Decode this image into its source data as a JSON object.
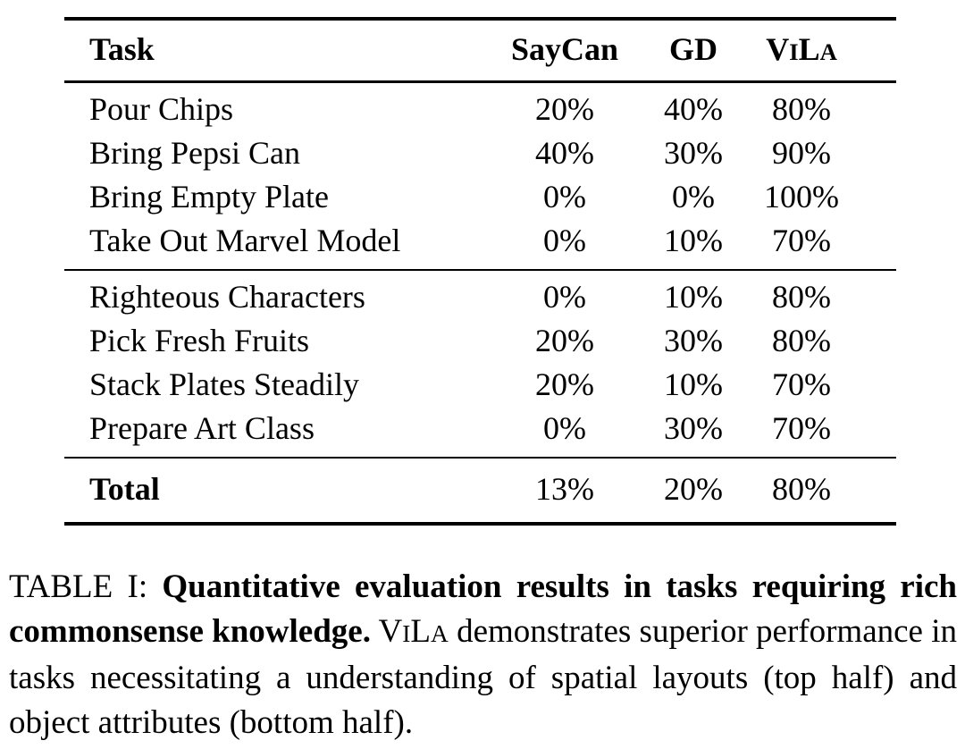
{
  "vila": {
    "c1": "V",
    "c2": "I",
    "c3": "L",
    "c4": "A"
  },
  "table": {
    "columns": {
      "task": "Task",
      "saycan": "SayCan",
      "gd": "GD"
    },
    "groups": [
      {
        "rows": [
          {
            "task": "Pour Chips",
            "saycan": "20%",
            "gd": "40%",
            "vila": "80%"
          },
          {
            "task": "Bring Pepsi Can",
            "saycan": "40%",
            "gd": "30%",
            "vila": "90%"
          },
          {
            "task": "Bring Empty Plate",
            "saycan": "0%",
            "gd": "0%",
            "vila": "100%"
          },
          {
            "task": "Take Out Marvel Model",
            "saycan": "0%",
            "gd": "10%",
            "vila": "70%"
          }
        ]
      },
      {
        "rows": [
          {
            "task": "Righteous Characters",
            "saycan": "0%",
            "gd": "10%",
            "vila": "80%"
          },
          {
            "task": "Pick Fresh Fruits",
            "saycan": "20%",
            "gd": "30%",
            "vila": "80%"
          },
          {
            "task": "Stack Plates Steadily",
            "saycan": "20%",
            "gd": "10%",
            "vila": "70%"
          },
          {
            "task": "Prepare Art Class",
            "saycan": "0%",
            "gd": "30%",
            "vila": "70%"
          }
        ]
      }
    ],
    "total": {
      "task": "Total",
      "saycan": "13%",
      "gd": "20%",
      "vila": "80%"
    }
  },
  "caption": {
    "label": "TABLE I:",
    "bold_text": "Quantitative evaluation results in tasks requiring rich commonsense knowledge.",
    "rest_text": "demonstrates superior performance in tasks necessitating a understanding of spatial layouts (top half) and object attributes (bottom half)."
  },
  "colors": {
    "text": "#000000",
    "background": "#ffffff",
    "rule": "#000000"
  }
}
